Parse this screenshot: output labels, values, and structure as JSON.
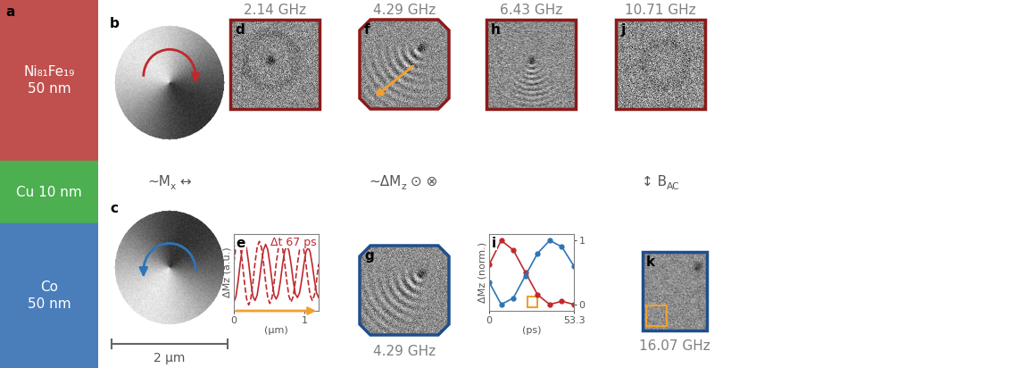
{
  "stack": {
    "label": "a",
    "layers": [
      {
        "lines": [
          "Ni₈₁Fe₁₉",
          "50 nm"
        ],
        "color": "#c0504d"
      },
      {
        "lines": [
          "Cu 10 nm"
        ],
        "color": "#4caf50"
      },
      {
        "lines": [
          "Co",
          "50 nm"
        ],
        "color": "#4a7ebb"
      }
    ]
  },
  "domains": {
    "panels": [
      {
        "label": "b",
        "color": "#c0282d"
      },
      {
        "label": "c",
        "color": "#2e75b6"
      }
    ],
    "caption": [
      {
        "text": "~M"
      },
      {
        "text": "x",
        "sub": true
      },
      {
        "text": " ↔"
      }
    ],
    "scale_bar": "2 µm"
  },
  "images": [
    {
      "label": "d",
      "title": "2.14 GHz"
    },
    {
      "label": "f",
      "title": "4.29 GHz"
    },
    {
      "label": "g",
      "title": "4.29 GHz"
    },
    {
      "label": "h",
      "title": "6.43 GHz"
    },
    {
      "label": "j",
      "title": "10.71 GHz"
    },
    {
      "label": "k",
      "title": "16.07 GHz"
    }
  ],
  "captions": [
    [
      {
        "text": "~ΔM"
      },
      {
        "text": "z",
        "sub": true
      },
      {
        "text": " ⊙ ⊗"
      }
    ],
    [
      {
        "text": "↕ B"
      },
      {
        "text": "AC",
        "sub": true
      }
    ]
  ],
  "chart_data": [
    {
      "type": "line",
      "label": "e",
      "xlabel": "(μm)",
      "ylabel": "ΔMz (a.u.)",
      "annotation": "Δt 67 ps",
      "tick_labels": "x",
      "xlim": [
        0,
        1.2
      ],
      "ylim": [
        -1.3,
        1.3
      ],
      "xticks": [
        0,
        1
      ],
      "x": [
        0,
        0.03,
        0.06,
        0.09,
        0.12,
        0.15,
        0.18,
        0.21,
        0.24,
        0.27,
        0.3,
        0.33,
        0.36,
        0.39,
        0.42,
        0.45,
        0.48,
        0.51,
        0.54,
        0.57,
        0.6,
        0.63,
        0.66,
        0.69,
        0.72,
        0.75,
        0.78,
        0.81,
        0.84,
        0.87,
        0.9,
        0.93,
        0.96,
        0.99,
        1.02,
        1.05,
        1.08,
        1.11,
        1.14,
        1.17,
        1.2
      ],
      "series": [
        {
          "color": "#c0282d",
          "line_style": "solid",
          "values": [
            -1,
            -0.81,
            -0.31,
            0.31,
            0.81,
            1,
            0.81,
            0.31,
            -0.31,
            -0.81,
            -0.95,
            -0.77,
            -0.29,
            0.29,
            0.77,
            0.95,
            0.77,
            0.29,
            -0.29,
            -0.77,
            -0.9,
            -0.73,
            -0.28,
            0.28,
            0.73,
            0.9,
            0.73,
            0.28,
            -0.28,
            -0.73,
            -0.85,
            -0.69,
            -0.26,
            0.26,
            0.69,
            0.85,
            0.69,
            0.26,
            -0.26,
            -0.69,
            -0.85
          ]
        },
        {
          "color": "#c0282d",
          "line_style": "dashed",
          "values": [
            0.34,
            0.89,
            1.1,
            0.89,
            0.34,
            -0.34,
            -0.89,
            -1.1,
            -0.89,
            -0.34,
            0.33,
            0.85,
            1.05,
            0.85,
            0.33,
            -0.33,
            -0.85,
            -1.05,
            -0.85,
            -0.33,
            0.31,
            0.81,
            1,
            0.81,
            0.31,
            -0.31,
            -0.81,
            -1,
            -0.81,
            -0.31,
            0.29,
            0.77,
            0.95,
            0.77,
            0.29,
            -0.29,
            -0.77,
            -0.95,
            -0.77,
            -0.29,
            0.29
          ]
        }
      ]
    },
    {
      "type": "line",
      "label": "i",
      "xlabel": "(ps)",
      "ylabel": "ΔMz (norm.)",
      "xlim": [
        0,
        53.3
      ],
      "ylim": [
        -0.1,
        1.1
      ],
      "xticks": [
        0,
        53.3
      ],
      "yticks": [
        0,
        1
      ],
      "x": [
        0,
        7.6,
        15.2,
        22.8,
        30.5,
        38.1,
        45.7,
        53.3
      ],
      "series": [
        {
          "color": "#c0282d",
          "line_style": "solid",
          "marker": "o",
          "values": [
            0.62,
            1.0,
            0.85,
            0.5,
            0.15,
            0.0,
            0.05,
            0.0
          ]
        },
        {
          "color": "#2e75b6",
          "line_style": "solid",
          "marker": "o",
          "values": [
            0.35,
            0.0,
            0.1,
            0.45,
            0.8,
            1.0,
            0.9,
            0.6
          ]
        }
      ]
    }
  ]
}
